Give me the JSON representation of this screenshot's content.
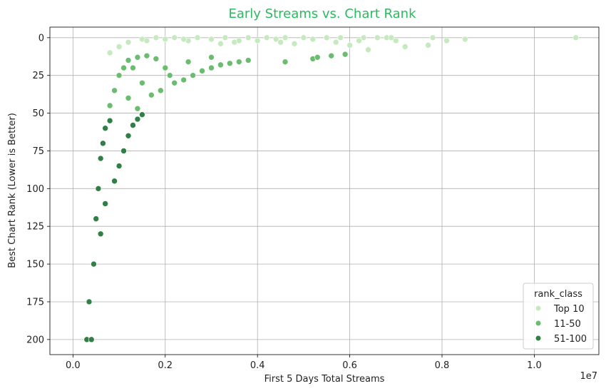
{
  "chart_data": {
    "type": "scatter",
    "title": "Early Streams vs. Chart Rank",
    "title_color": "#2aba5f",
    "xlabel": "First 5 Days Total Streams",
    "ylabel": "Best Chart Rank (Lower is Better)",
    "x_offset_text": "1e7",
    "xlim": [
      -0.05,
      1.14
    ],
    "ylim": [
      210,
      -7
    ],
    "y_inverted": true,
    "x_ticks": [
      0.0,
      0.2,
      0.4,
      0.6,
      0.8,
      1.0
    ],
    "x_tick_labels": [
      "0.0",
      "0.2",
      "0.4",
      "0.6",
      "0.8",
      "1.0"
    ],
    "y_ticks": [
      0,
      25,
      50,
      75,
      100,
      125,
      150,
      175,
      200
    ],
    "y_tick_labels": [
      "0",
      "25",
      "50",
      "75",
      "100",
      "125",
      "150",
      "175",
      "200"
    ],
    "grid": true,
    "legend": {
      "title": "rank_class",
      "position": "lower-right"
    },
    "series": [
      {
        "name": "Top 10",
        "color": "#c7e9c0",
        "points": [
          [
            0.08,
            10
          ],
          [
            0.1,
            6
          ],
          [
            0.12,
            3
          ],
          [
            0.15,
            1
          ],
          [
            0.18,
            0
          ],
          [
            0.2,
            1
          ],
          [
            0.22,
            0
          ],
          [
            0.25,
            2
          ],
          [
            0.27,
            0
          ],
          [
            0.3,
            1
          ],
          [
            0.33,
            0
          ],
          [
            0.35,
            3
          ],
          [
            0.38,
            0
          ],
          [
            0.4,
            2
          ],
          [
            0.42,
            0
          ],
          [
            0.44,
            1
          ],
          [
            0.46,
            0
          ],
          [
            0.48,
            4
          ],
          [
            0.5,
            0
          ],
          [
            0.52,
            1
          ],
          [
            0.55,
            0
          ],
          [
            0.57,
            3
          ],
          [
            0.58,
            0
          ],
          [
            0.6,
            5
          ],
          [
            0.62,
            2
          ],
          [
            0.63,
            0
          ],
          [
            0.64,
            8
          ],
          [
            0.66,
            0
          ],
          [
            0.68,
            0
          ],
          [
            0.69,
            0
          ],
          [
            0.7,
            2
          ],
          [
            0.72,
            6
          ],
          [
            0.77,
            5
          ],
          [
            0.78,
            0
          ],
          [
            0.81,
            2
          ],
          [
            0.85,
            1
          ],
          [
            1.09,
            0
          ],
          [
            0.16,
            2
          ],
          [
            0.24,
            1
          ],
          [
            0.32,
            4
          ],
          [
            0.36,
            2
          ],
          [
            0.45,
            3
          ]
        ]
      },
      {
        "name": "11-50",
        "color": "#6abc6e",
        "points": [
          [
            0.08,
            45
          ],
          [
            0.09,
            35
          ],
          [
            0.1,
            25
          ],
          [
            0.11,
            20
          ],
          [
            0.12,
            15
          ],
          [
            0.14,
            13
          ],
          [
            0.16,
            12
          ],
          [
            0.18,
            14
          ],
          [
            0.2,
            20
          ],
          [
            0.22,
            30
          ],
          [
            0.24,
            28
          ],
          [
            0.26,
            25
          ],
          [
            0.28,
            22
          ],
          [
            0.3,
            20
          ],
          [
            0.32,
            18
          ],
          [
            0.34,
            17
          ],
          [
            0.36,
            16
          ],
          [
            0.38,
            15
          ],
          [
            0.15,
            30
          ],
          [
            0.17,
            38
          ],
          [
            0.19,
            35
          ],
          [
            0.21,
            25
          ],
          [
            0.25,
            16
          ],
          [
            0.3,
            13
          ],
          [
            0.46,
            16
          ],
          [
            0.52,
            14
          ],
          [
            0.53,
            13
          ],
          [
            0.56,
            12
          ],
          [
            0.59,
            11
          ],
          [
            0.13,
            20
          ],
          [
            0.12,
            40
          ],
          [
            0.14,
            47
          ]
        ]
      },
      {
        "name": "51-100",
        "color": "#2f7f46",
        "points": [
          [
            0.03,
            200
          ],
          [
            0.035,
            175
          ],
          [
            0.04,
            200
          ],
          [
            0.045,
            150
          ],
          [
            0.05,
            120
          ],
          [
            0.055,
            100
          ],
          [
            0.06,
            80
          ],
          [
            0.065,
            70
          ],
          [
            0.07,
            60
          ],
          [
            0.08,
            55
          ],
          [
            0.09,
            95
          ],
          [
            0.1,
            85
          ],
          [
            0.11,
            75
          ],
          [
            0.12,
            65
          ],
          [
            0.13,
            58
          ],
          [
            0.14,
            54
          ],
          [
            0.15,
            51
          ],
          [
            0.06,
            130
          ],
          [
            0.07,
            110
          ]
        ]
      }
    ]
  }
}
